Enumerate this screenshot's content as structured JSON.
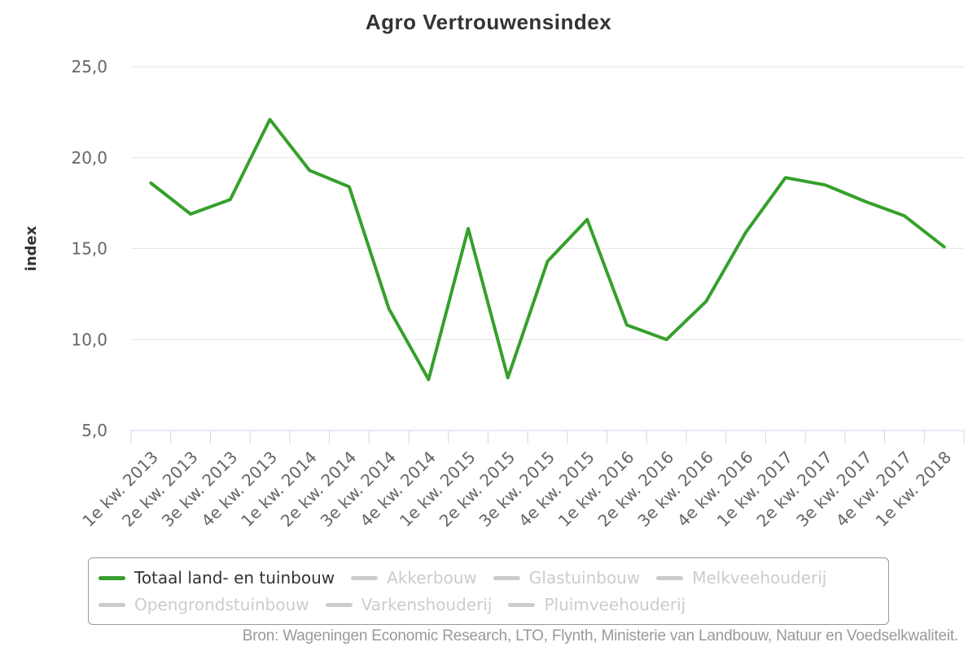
{
  "title": "Agro Vertrouwensindex",
  "credits": "Bron: Wageningen Economic Research, LTO, Flynth, Ministerie van Landbouw, Natuur en Voedselkwaliteit.",
  "colors": {
    "active_series": "#36a02c",
    "disabled_series": "#cccccc",
    "gridline": "#e6e6e6",
    "axis_line": "#ccd6eb",
    "tick_label": "#666666",
    "title_text": "#333333",
    "legend_border": "#999999",
    "credits_text": "#999999"
  },
  "y_axis": {
    "title": "index",
    "ticks": [
      5,
      10,
      15,
      20,
      25
    ],
    "tick_labels": [
      "5,0",
      "10,0",
      "15,0",
      "20,0",
      "25,0"
    ]
  },
  "chart_data": {
    "type": "line",
    "title": "Agro Vertrouwensindex",
    "xlabel": "",
    "ylabel": "index",
    "ylim": [
      5,
      25
    ],
    "grid": true,
    "legend_position": "bottom",
    "categories": [
      "1e kw. 2013",
      "2e kw. 2013",
      "3e kw. 2013",
      "4e kw. 2013",
      "1e kw. 2014",
      "2e kw. 2014",
      "3e kw. 2014",
      "4e kw. 2014",
      "1e kw. 2015",
      "2e kw. 2015",
      "3e kw. 2015",
      "4e kw. 2015",
      "1e kw. 2016",
      "2e kw. 2016",
      "3e kw. 2016",
      "4e kw. 2016",
      "1e kw. 2017",
      "2e kw. 2017",
      "3e kw. 2017",
      "4e kw. 2017",
      "1e kw. 2018"
    ],
    "series": [
      {
        "name": "Totaal land- en tuinbouw",
        "visible": true,
        "color": "#36a02c",
        "values": [
          18.6,
          16.9,
          17.7,
          22.1,
          19.3,
          18.4,
          11.7,
          7.8,
          16.1,
          7.9,
          14.3,
          16.6,
          10.8,
          10.0,
          12.1,
          15.9,
          18.9,
          18.5,
          17.6,
          16.8,
          15.1
        ]
      },
      {
        "name": "Akkerbouw",
        "visible": false,
        "color": "#cccccc",
        "values": null
      },
      {
        "name": "Glastuinbouw",
        "visible": false,
        "color": "#cccccc",
        "values": null
      },
      {
        "name": "Melkveehouderij",
        "visible": false,
        "color": "#cccccc",
        "values": null
      },
      {
        "name": "Opengrondstuinbouw",
        "visible": false,
        "color": "#cccccc",
        "values": null
      },
      {
        "name": "Varkenshouderij",
        "visible": false,
        "color": "#cccccc",
        "values": null
      },
      {
        "name": "Pluimveehouderij",
        "visible": false,
        "color": "#cccccc",
        "values": null
      }
    ]
  }
}
